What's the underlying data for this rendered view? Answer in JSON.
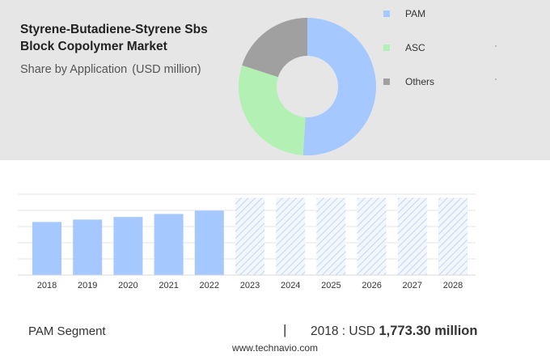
{
  "header": {
    "title": "Styrene-Butadiene-Styrene Sbs Block Copolymer Market",
    "subtitle": "Share by Application",
    "unit": "(USD million)"
  },
  "colors": {
    "pam": "#a4c8ff",
    "asc": "#b3f0b3",
    "others": "#a0a0a0",
    "forecast_hatch": "#c8d8f5"
  },
  "chart_data": [
    {
      "type": "pie",
      "variant": "donut",
      "series": [
        {
          "name": "PAM",
          "value": 51,
          "color": "#a4c8ff"
        },
        {
          "name": "ASC",
          "value": 29,
          "color": "#b3f0b3"
        },
        {
          "name": "Others",
          "value": 20,
          "color": "#a0a0a0"
        }
      ],
      "legend": [
        "PAM",
        "ASC",
        "Others"
      ],
      "legend_position": "right"
    },
    {
      "type": "bar",
      "categories": [
        "2018",
        "2019",
        "2020",
        "2021",
        "2022",
        "2023",
        "2024",
        "2025",
        "2026",
        "2027",
        "2028"
      ],
      "values": [
        1773.3,
        1853,
        1941,
        2040,
        2150,
        2580,
        2580,
        2580,
        2580,
        2580,
        2580
      ],
      "forecast_from": "2023",
      "ylim": [
        0,
        2700
      ],
      "grid": true
    }
  ],
  "footer": {
    "segment": "PAM Segment",
    "separator": "|",
    "year_text": "2018 : USD",
    "value_text": "1,773.30 million",
    "website": "www.technavio.com"
  }
}
